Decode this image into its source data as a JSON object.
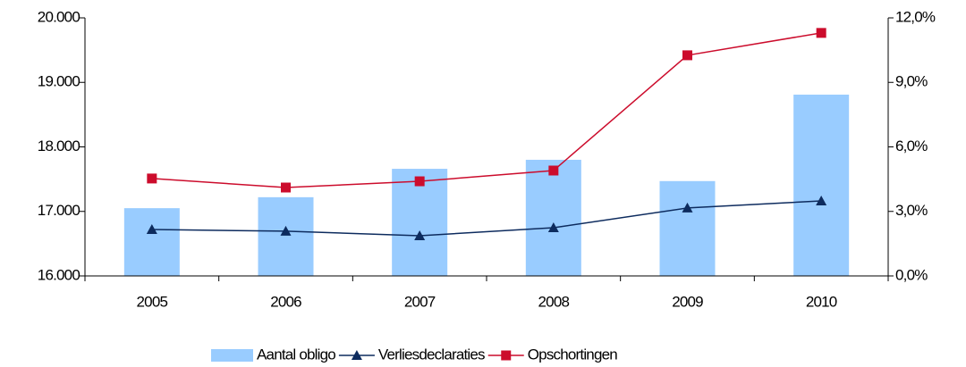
{
  "chart_data": {
    "type": "bar-line",
    "categories": [
      "2005",
      "2006",
      "2007",
      "2008",
      "2009",
      "2010"
    ],
    "series": [
      {
        "name": "Aantal obligo",
        "type": "bar",
        "color": "#99ccff",
        "values": [
          17050,
          17220,
          17660,
          17800,
          17470,
          18810
        ]
      },
      {
        "name": "Verliesdeclaraties",
        "type": "line",
        "marker": "triangle",
        "axis": "y2",
        "color": "#0d2b5e",
        "values": [
          2.16,
          2.08,
          1.87,
          2.24,
          3.16,
          3.49
        ]
      },
      {
        "name": "Opschortingen",
        "type": "line",
        "marker": "square",
        "axis": "y2",
        "color": "#cc0c2c",
        "values": [
          4.53,
          4.11,
          4.4,
          4.9,
          10.26,
          11.3
        ]
      }
    ],
    "ylim": [
      16000,
      20000
    ],
    "yticks": [
      {
        "value": 16000,
        "label": "16.000"
      },
      {
        "value": 17000,
        "label": "17.000"
      },
      {
        "value": 18000,
        "label": "18.000"
      },
      {
        "value": 19000,
        "label": "19.000"
      },
      {
        "value": 20000,
        "label": "20.000"
      }
    ],
    "y2lim": [
      0,
      12
    ],
    "y2ticks": [
      {
        "value": 0,
        "label": "0,0%"
      },
      {
        "value": 3,
        "label": "3,0%"
      },
      {
        "value": 6,
        "label": "6,0%"
      },
      {
        "value": 9,
        "label": "9,0%"
      },
      {
        "value": 12,
        "label": "12,0%"
      }
    ],
    "grid": false,
    "legend": "bottom"
  }
}
